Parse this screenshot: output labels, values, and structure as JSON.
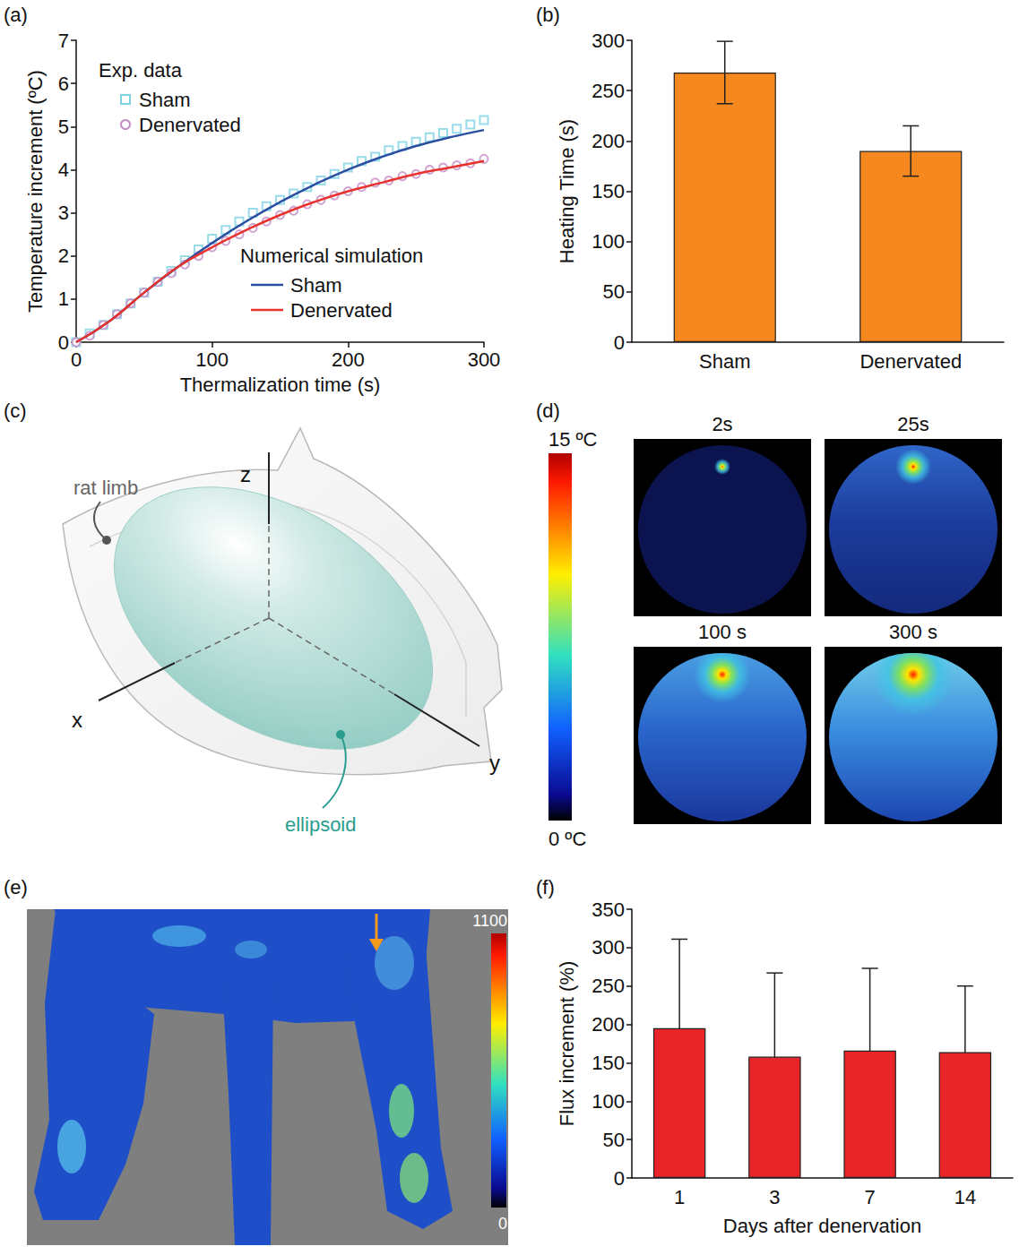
{
  "chart_data": [
    {
      "panel": "(a)",
      "type": "line",
      "x_label": "Thermalization time (s)",
      "y_label": "Temperature increment (ºC)",
      "xlim": [
        0,
        300
      ],
      "xticks": [
        0,
        100,
        200,
        300
      ],
      "ylim": [
        0,
        7
      ],
      "yticks": [
        0,
        1,
        2,
        3,
        4,
        5,
        6,
        7
      ],
      "annotations": [
        {
          "text": "Exp. data"
        },
        {
          "text": "Numerical simulation"
        }
      ],
      "legend": "upper left",
      "series": [
        {
          "name": "Sham",
          "type": "scatter",
          "marker": "square",
          "color": "#7fd3e3",
          "x": [
            0,
            10,
            20,
            30,
            40,
            50,
            60,
            70,
            80,
            90,
            100,
            110,
            120,
            130,
            140,
            150,
            160,
            170,
            180,
            190,
            200,
            210,
            220,
            230,
            240,
            250,
            260,
            270,
            280,
            290,
            300
          ],
          "values": [
            0,
            0.2,
            0.4,
            0.65,
            0.9,
            1.15,
            1.4,
            1.65,
            1.9,
            2.15,
            2.4,
            2.6,
            2.8,
            3.0,
            3.15,
            3.3,
            3.45,
            3.6,
            3.75,
            3.9,
            4.05,
            4.2,
            4.3,
            4.45,
            4.55,
            4.65,
            4.75,
            4.85,
            4.95,
            5.05,
            5.15
          ]
        },
        {
          "name": "Denervated",
          "type": "scatter",
          "marker": "circle",
          "color": "#c58cc6",
          "x": [
            0,
            10,
            20,
            30,
            40,
            50,
            60,
            70,
            80,
            90,
            100,
            110,
            120,
            130,
            140,
            150,
            160,
            170,
            180,
            190,
            200,
            210,
            220,
            230,
            240,
            250,
            260,
            270,
            280,
            290,
            300
          ],
          "values": [
            0,
            0.15,
            0.4,
            0.65,
            0.9,
            1.15,
            1.4,
            1.6,
            1.8,
            2.0,
            2.2,
            2.35,
            2.5,
            2.65,
            2.8,
            2.95,
            3.05,
            3.2,
            3.3,
            3.4,
            3.5,
            3.6,
            3.7,
            3.75,
            3.85,
            3.9,
            4.0,
            4.05,
            4.1,
            4.15,
            4.25
          ]
        },
        {
          "name": "Sham",
          "type": "line",
          "line_style": "solid",
          "color": "#2b4fa0",
          "x": [
            0,
            25,
            50,
            75,
            100,
            125,
            150,
            175,
            200,
            225,
            250,
            275,
            300
          ],
          "values": [
            0,
            0.5,
            1.15,
            1.75,
            2.3,
            2.8,
            3.25,
            3.65,
            4.0,
            4.3,
            4.55,
            4.75,
            4.92
          ]
        },
        {
          "name": "Denervated",
          "type": "line",
          "line_style": "solid",
          "color": "#e8322e",
          "x": [
            0,
            25,
            50,
            75,
            100,
            125,
            150,
            175,
            200,
            225,
            250,
            275,
            300
          ],
          "values": [
            0,
            0.5,
            1.15,
            1.75,
            2.2,
            2.6,
            2.95,
            3.25,
            3.5,
            3.7,
            3.9,
            4.05,
            4.2
          ]
        }
      ]
    },
    {
      "panel": "(b)",
      "type": "bar",
      "y_label": "Heating Time (s)",
      "categories": [
        "Sham",
        "Denervated"
      ],
      "values": [
        268,
        190
      ],
      "errors": [
        31,
        25
      ],
      "color": "#f5891f",
      "ylim": [
        0,
        300
      ],
      "yticks": [
        0,
        50,
        100,
        150,
        200,
        250,
        300
      ]
    },
    {
      "panel": "(f)",
      "type": "bar",
      "x_label": "Days after denervation",
      "y_label": "Flux increment (%)",
      "categories": [
        "1",
        "3",
        "7",
        "14"
      ],
      "values": [
        195,
        158,
        166,
        164
      ],
      "errors": [
        116,
        109,
        107,
        86
      ],
      "color": "#e8262a",
      "ylim": [
        0,
        350
      ],
      "yticks": [
        0,
        50,
        100,
        150,
        200,
        250,
        300,
        350
      ]
    }
  ],
  "diagrams": {
    "c": {
      "panel": "(c)",
      "labels": {
        "limb": "rat limb",
        "ellipsoid": "ellipsoid",
        "x": "x",
        "y": "y",
        "z": "z"
      }
    },
    "d": {
      "panel": "(d)",
      "frames": [
        "2s",
        "25s",
        "100 s",
        "300 s"
      ],
      "colorbar": {
        "range": [
          0,
          15
        ],
        "ticks": [
          {
            "value": 0,
            "label": "0 ºC"
          },
          {
            "value": 15,
            "label": "15 ºC"
          }
        ]
      }
    },
    "e": {
      "panel": "(e)",
      "colorbar": {
        "range": [
          0,
          1100
        ],
        "ticks": [
          0,
          1100
        ]
      }
    }
  }
}
